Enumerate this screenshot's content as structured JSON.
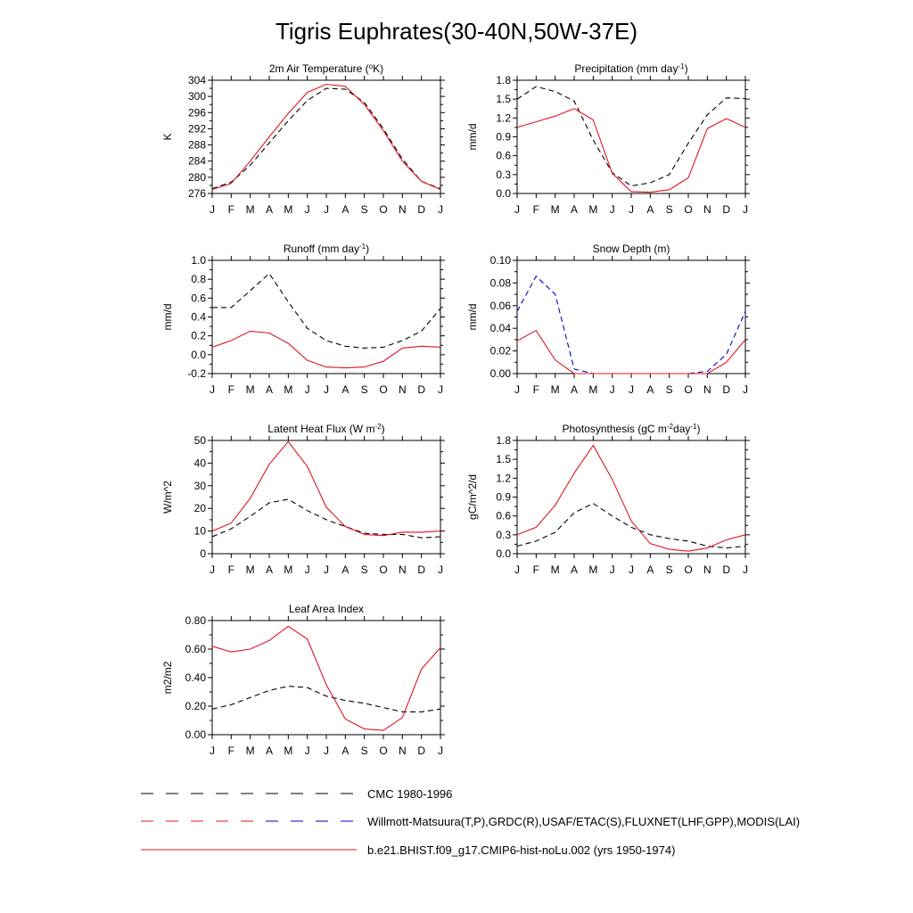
{
  "figure": {
    "title": "Tigris Euphrates(30-40N,50W-37E)"
  },
  "months": [
    "J",
    "F",
    "M",
    "A",
    "M",
    "J",
    "J",
    "A",
    "S",
    "O",
    "N",
    "D",
    "J"
  ],
  "colors": {
    "obs_black": "#000000",
    "obs_blue": "#0000cc",
    "model_red": "#e0141e"
  },
  "legend": [
    {
      "label": "CMC 1980-1996",
      "style": "dash",
      "colors": [
        "#000000"
      ]
    },
    {
      "label": "Willmott-Matsuura(T,P),GRDC(R),USAF/ETAC(S),FLUXNET(LHF,GPP),MODIS(LAI)",
      "style": "dash",
      "colors": [
        "#e0141e",
        "#0000cc"
      ]
    },
    {
      "label": "b.e21.BHIST.f09_g17.CMIP6-hist-noLu.002 (yrs 1950-1974)",
      "style": "solid",
      "colors": [
        "#e0141e"
      ]
    }
  ],
  "chart_data": [
    {
      "type": "line",
      "title": "2m Air Temperature (",
      "title_sup": "o",
      "title_after": "K)",
      "ylabel": "K",
      "ylim": [
        276,
        304
      ],
      "yticks": [
        276,
        280,
        284,
        288,
        292,
        296,
        300,
        304
      ],
      "ytick_labels": [
        "276",
        "280",
        "284",
        "288",
        "292",
        "296",
        "300",
        "304"
      ],
      "series": [
        {
          "style": "dash",
          "color": "#000000",
          "values": [
            277.2,
            278.8,
            283.0,
            288.5,
            294.0,
            299.0,
            302.0,
            301.8,
            298.5,
            292.0,
            284.5,
            279.0,
            277.2
          ]
        },
        {
          "style": "solid",
          "color": "#e0141e",
          "values": [
            277.0,
            278.5,
            284.0,
            290.0,
            295.8,
            301.0,
            303.0,
            302.5,
            298.0,
            291.5,
            284.0,
            279.0,
            277.0
          ]
        }
      ]
    },
    {
      "type": "line",
      "title": "Precipitation (mm day",
      "title_sup": "-1",
      "title_after": ")",
      "ylabel": "mm/d",
      "ylim": [
        0,
        1.8
      ],
      "yticks": [
        0,
        0.3,
        0.6,
        0.9,
        1.2,
        1.5,
        1.8
      ],
      "ytick_labels": [
        "0.0",
        "0.3",
        "0.6",
        "0.9",
        "1.2",
        "1.5",
        "1.8"
      ],
      "series": [
        {
          "style": "dash",
          "color": "#000000",
          "values": [
            1.5,
            1.7,
            1.62,
            1.47,
            0.85,
            0.33,
            0.12,
            0.17,
            0.3,
            0.8,
            1.25,
            1.52,
            1.51
          ]
        },
        {
          "style": "solid",
          "color": "#e0141e",
          "values": [
            1.05,
            1.14,
            1.23,
            1.35,
            1.17,
            0.32,
            0.03,
            0.02,
            0.06,
            0.25,
            1.03,
            1.19,
            1.05
          ]
        }
      ]
    },
    {
      "type": "line",
      "title": "Runoff (mm day",
      "title_sup": "-1",
      "title_after": ")",
      "ylabel": "mm/d",
      "ylim": [
        -0.2,
        1.0
      ],
      "yticks": [
        -0.2,
        0,
        0.2,
        0.4,
        0.6,
        0.8,
        1.0
      ],
      "ytick_labels": [
        "-0.2",
        "0.0",
        "0.2",
        "0.4",
        "0.6",
        "0.8",
        "1.0"
      ],
      "series": [
        {
          "style": "dash",
          "color": "#000000",
          "values": [
            0.5,
            0.5,
            0.68,
            0.86,
            0.56,
            0.28,
            0.15,
            0.09,
            0.07,
            0.08,
            0.15,
            0.25,
            0.49
          ]
        },
        {
          "style": "solid",
          "color": "#e0141e",
          "values": [
            0.08,
            0.15,
            0.25,
            0.23,
            0.12,
            -0.06,
            -0.13,
            -0.14,
            -0.13,
            -0.07,
            0.07,
            0.09,
            0.08
          ]
        }
      ]
    },
    {
      "type": "line",
      "title": "Snow Depth (m)",
      "title_sup": "",
      "title_after": "",
      "ylabel": "mm/d",
      "ylim": [
        0,
        0.1
      ],
      "yticks": [
        0,
        0.02,
        0.04,
        0.06,
        0.08,
        0.1
      ],
      "ytick_labels": [
        "0.00",
        "0.02",
        "0.04",
        "0.06",
        "0.08",
        "0.10"
      ],
      "series": [
        {
          "style": "dash",
          "color": "#000000",
          "values": [
            0,
            0,
            0,
            0,
            0,
            0,
            0,
            0,
            0,
            0,
            0,
            0,
            0
          ]
        },
        {
          "style": "dash",
          "color": "#0000cc",
          "values": [
            0.055,
            0.086,
            0.07,
            0.004,
            0,
            0,
            0,
            0,
            0,
            0,
            0.002,
            0.017,
            0.055
          ]
        },
        {
          "style": "solid",
          "color": "#e0141e",
          "values": [
            0.029,
            0.038,
            0.012,
            0,
            0,
            0,
            0,
            0,
            0,
            0,
            0,
            0.01,
            0.03
          ]
        }
      ]
    },
    {
      "type": "line",
      "title": "Latent Heat Flux (W m",
      "title_sup": "-2",
      "title_after": ")",
      "ylabel": "W/m^2",
      "ylim": [
        0,
        50
      ],
      "yticks": [
        0,
        10,
        20,
        30,
        40,
        50
      ],
      "ytick_labels": [
        "0",
        "10",
        "20",
        "30",
        "40",
        "50"
      ],
      "series": [
        {
          "style": "dash",
          "color": "#000000",
          "values": [
            7.5,
            11,
            16.5,
            22.5,
            24,
            19,
            15,
            12,
            9,
            8.5,
            8.5,
            7,
            7.5
          ]
        },
        {
          "style": "solid",
          "color": "#e0141e",
          "values": [
            10,
            13.5,
            24.5,
            39.5,
            49.5,
            38.5,
            20.5,
            12,
            8.5,
            8,
            9.5,
            9.5,
            10
          ]
        }
      ]
    },
    {
      "type": "line",
      "title": "Photosynthesis (gC m",
      "title_sup": "-2",
      "title_after": "day",
      "title_sup2": "-1",
      "title_after2": ")",
      "ylabel": "gC/m^2/d",
      "ylim": [
        0,
        1.8
      ],
      "yticks": [
        0,
        0.3,
        0.6,
        0.9,
        1.2,
        1.5,
        1.8
      ],
      "ytick_labels": [
        "0.0",
        "0.3",
        "0.6",
        "0.9",
        "1.2",
        "1.5",
        "1.8"
      ],
      "series": [
        {
          "style": "dash",
          "color": "#000000",
          "values": [
            0.12,
            0.2,
            0.34,
            0.65,
            0.8,
            0.6,
            0.42,
            0.3,
            0.24,
            0.2,
            0.12,
            0.09,
            0.12
          ]
        },
        {
          "style": "solid",
          "color": "#e0141e",
          "values": [
            0.3,
            0.42,
            0.77,
            1.28,
            1.72,
            1.18,
            0.52,
            0.16,
            0.07,
            0.04,
            0.09,
            0.22,
            0.3
          ]
        }
      ]
    },
    {
      "type": "line",
      "title": "Leaf Area Index",
      "title_sup": "",
      "title_after": "",
      "ylabel": "m2/m2",
      "ylim": [
        0,
        0.8
      ],
      "yticks": [
        0,
        0.2,
        0.4,
        0.6,
        0.8
      ],
      "ytick_labels": [
        "0.00",
        "0.20",
        "0.40",
        "0.60",
        "0.80"
      ],
      "series": [
        {
          "style": "dash",
          "color": "#000000",
          "values": [
            0.18,
            0.21,
            0.26,
            0.31,
            0.34,
            0.33,
            0.27,
            0.24,
            0.22,
            0.19,
            0.16,
            0.16,
            0.18
          ]
        },
        {
          "style": "solid",
          "color": "#e0141e",
          "values": [
            0.62,
            0.58,
            0.6,
            0.66,
            0.76,
            0.67,
            0.35,
            0.11,
            0.04,
            0.03,
            0.12,
            0.46,
            0.61
          ]
        }
      ]
    }
  ]
}
